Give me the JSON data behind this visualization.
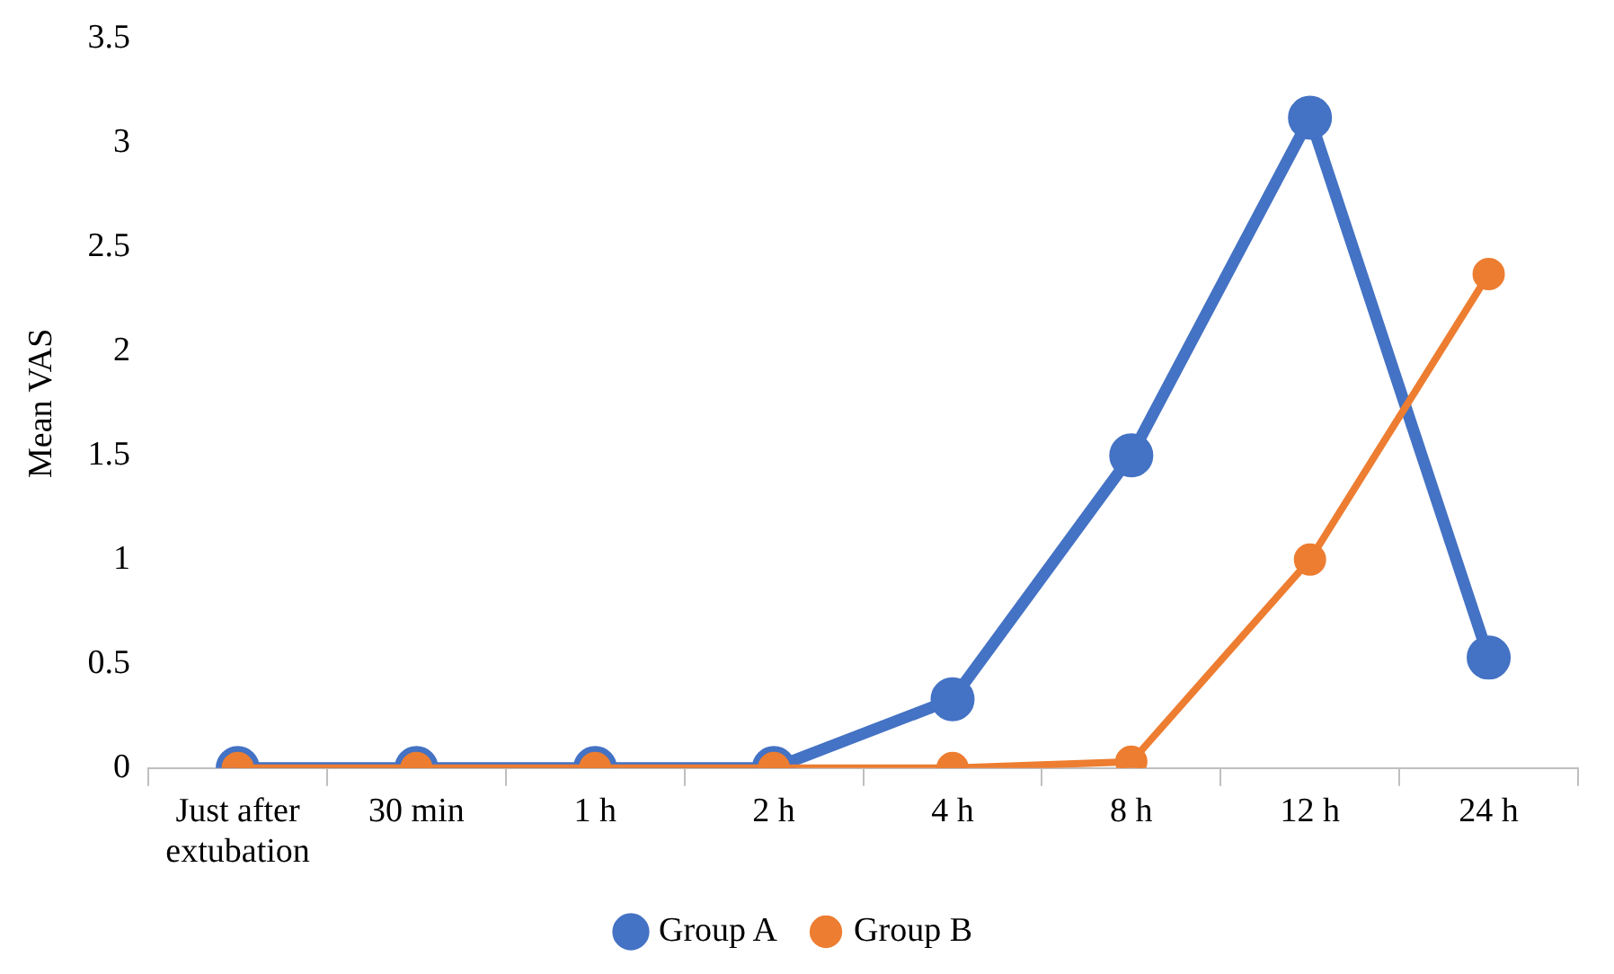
{
  "chart_data": {
    "type": "line",
    "ylabel": "Mean VAS",
    "categories": [
      "Just after extubation",
      "30 min",
      "1 h",
      "2 h",
      "4 h",
      "8 h",
      "12 h",
      "24 h"
    ],
    "series": [
      {
        "name": "Group A",
        "color": "#4472c4",
        "values": [
          0,
          0,
          0,
          0,
          0.33,
          1.5,
          3.12,
          0.53
        ]
      },
      {
        "name": "Group B",
        "color": "#ed7d31",
        "values": [
          0,
          0,
          0,
          0,
          0,
          0.03,
          1,
          2.37
        ]
      }
    ],
    "ylim": [
      0,
      3.5
    ],
    "yticks": [
      0,
      0.5,
      1,
      1.5,
      2,
      2.5,
      3,
      3.5
    ],
    "grid": false,
    "legend": "bottom",
    "marker": "circle",
    "line_style": "solid"
  }
}
